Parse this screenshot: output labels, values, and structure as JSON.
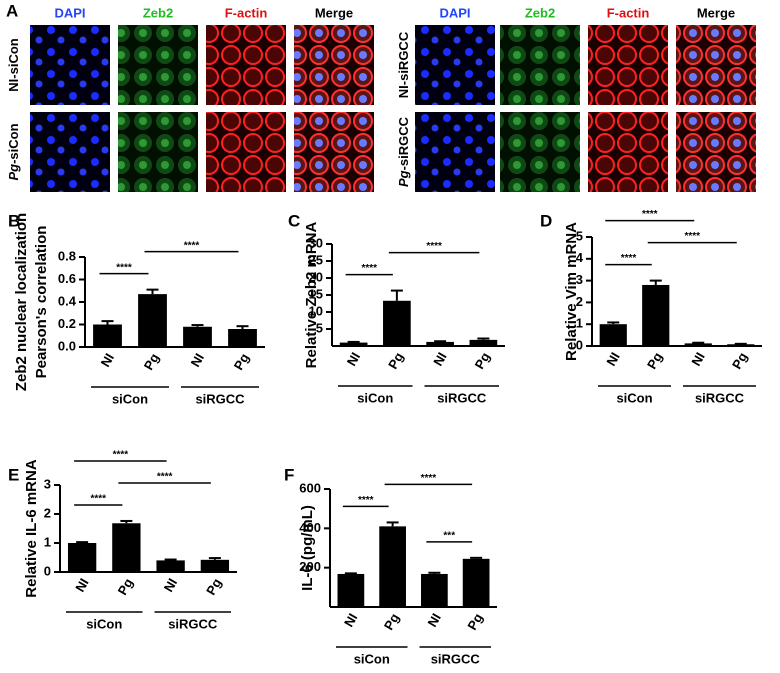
{
  "panel_a": {
    "label": "A",
    "columns": [
      "DAPI",
      "Zeb2",
      "F-actin",
      "Merge"
    ],
    "column_colors": [
      "#2244ff",
      "#22bb22",
      "#dd1111",
      "#000000"
    ],
    "rows_left": [
      {
        "text": "NI-siCon"
      },
      {
        "italic": "Pg",
        "text": "-siCon"
      }
    ],
    "rows_right": [
      {
        "text": "NI-siRGCC"
      },
      {
        "italic": "Pg",
        "text": "-siRGCC"
      }
    ]
  },
  "chart_data": [
    {
      "type": "bar",
      "panel": "B",
      "ylabel": [
        "Zeb2 nuclear localization",
        "Pearson's correlation"
      ],
      "categories": [
        "NI",
        "Pg",
        "NI",
        "Pg"
      ],
      "groups": [
        "siCon",
        "siRGCC"
      ],
      "values": [
        0.2,
        0.47,
        0.18,
        0.16
      ],
      "errors": [
        0.03,
        0.04,
        0.015,
        0.025
      ],
      "color": "#000000",
      "ylim": [
        0,
        0.8
      ],
      "yticks": [
        {
          "value": 0,
          "label": "0.0"
        },
        0.2,
        0.4,
        0.6,
        0.8
      ],
      "comparisons": [
        {
          "pair": [
            0,
            1
          ],
          "label": "****"
        },
        {
          "pair": [
            1,
            3
          ],
          "label": "****"
        }
      ]
    },
    {
      "type": "bar",
      "panel": "C",
      "ylabel": [
        "Relative Zeb2 mRNA"
      ],
      "categories": [
        "NI",
        "Pg",
        "NI",
        "Pg"
      ],
      "groups": [
        "siCon",
        "siRGCC"
      ],
      "values": [
        1,
        13.3,
        1.2,
        1.8
      ],
      "errors": [
        0.2,
        3,
        0.2,
        0.4
      ],
      "color": "#000000",
      "ylim": [
        0,
        30
      ],
      "yticks": [
        5,
        10,
        15,
        20,
        25,
        30
      ],
      "comparisons": [
        {
          "pair": [
            0,
            1
          ],
          "label": "****"
        },
        {
          "pair": [
            1,
            3
          ],
          "label": "****"
        }
      ]
    },
    {
      "type": "bar",
      "panel": "D",
      "ylabel": [
        "Relative Vim mRNA"
      ],
      "categories": [
        "NI",
        "Pg",
        "NI",
        "Pg"
      ],
      "groups": [
        "siCon",
        "siRGCC"
      ],
      "values": [
        1,
        2.8,
        0.12,
        0.08
      ],
      "errors": [
        0.08,
        0.2,
        0.03,
        0.02
      ],
      "color": "#000000",
      "ylim": [
        0,
        5
      ],
      "yticks": [
        0,
        1,
        2,
        3,
        4,
        5
      ],
      "comparisons": [
        {
          "pair": [
            0,
            1
          ],
          "label": "****"
        },
        {
          "pair": [
            1,
            3
          ],
          "label": "****"
        },
        {
          "pair": [
            0,
            2
          ],
          "label": "****"
        }
      ]
    },
    {
      "type": "bar",
      "panel": "E",
      "ylabel": [
        "Relative IL-6 mRNA"
      ],
      "categories": [
        "NI",
        "Pg",
        "NI",
        "Pg"
      ],
      "groups": [
        "siCon",
        "siRGCC"
      ],
      "values": [
        1.0,
        1.68,
        0.4,
        0.42
      ],
      "errors": [
        0.03,
        0.08,
        0.03,
        0.06
      ],
      "color": "#000000",
      "ylim": [
        0,
        3
      ],
      "yticks": [
        0,
        1,
        2,
        3
      ],
      "comparisons": [
        {
          "pair": [
            0,
            1
          ],
          "label": "****"
        },
        {
          "pair": [
            1,
            3
          ],
          "label": "****"
        },
        {
          "pair": [
            0,
            2
          ],
          "label": "****"
        }
      ]
    },
    {
      "type": "bar",
      "panel": "F",
      "ylabel": [
        "IL-6 (pg/mL)"
      ],
      "categories": [
        "NI",
        "Pg",
        "NI",
        "Pg"
      ],
      "groups": [
        "siCon",
        "siRGCC"
      ],
      "values": [
        168,
        410,
        168,
        245
      ],
      "errors": [
        3,
        20,
        6,
        5
      ],
      "color": "#000000",
      "ylim": [
        0,
        600
      ],
      "yticks": [
        200,
        400,
        600
      ],
      "comparisons": [
        {
          "pair": [
            2,
            3
          ],
          "label": "***"
        },
        {
          "pair": [
            0,
            1
          ],
          "label": "****"
        },
        {
          "pair": [
            1,
            3
          ],
          "label": "****"
        }
      ]
    }
  ]
}
